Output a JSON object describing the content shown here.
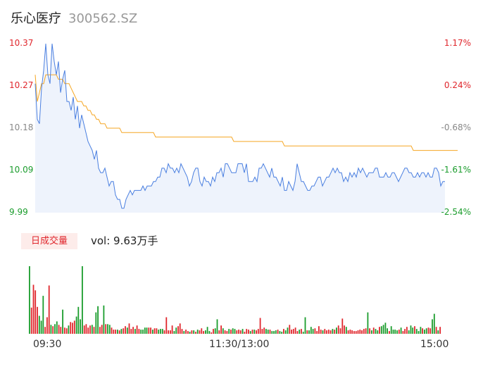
{
  "header": {
    "name": "乐心医疗",
    "code": "300562.SZ"
  },
  "volume_tab": {
    "label": "日成交量",
    "text": "vol: 9.63万手"
  },
  "colors": {
    "price": "#4a7fe0",
    "avg": "#f5a623",
    "up": "#e0262c",
    "down": "#1a9c2c",
    "area": "#eef3fc"
  },
  "chart_data": [
    {
      "type": "line",
      "title": "",
      "xlabel": "",
      "ylabel": "",
      "x_ticks": [
        "09:30",
        "11:30/13:00",
        "15:00"
      ],
      "y_left_ticks": [
        "10.37",
        "10.27",
        "10.18",
        "10.09",
        "9.99"
      ],
      "y_right_ticks": [
        "1.17%",
        "0.24%",
        "-0.68%",
        "-1.61%",
        "-2.54%"
      ],
      "ylim": [
        9.99,
        10.37
      ],
      "series": [
        {
          "values": [
            10.28,
            10.2,
            10.19,
            10.27,
            10.31,
            10.37,
            10.3,
            10.28,
            10.37,
            10.33,
            10.3,
            10.33,
            10.26,
            10.29,
            10.31,
            10.24,
            10.24,
            10.22,
            10.25,
            10.2,
            10.23,
            10.18,
            10.21,
            10.19,
            10.17,
            10.15,
            10.14,
            10.13,
            10.11,
            10.13,
            10.09,
            10.08,
            10.08,
            10.09,
            10.07,
            10.05,
            10.06,
            10.06,
            10.03,
            10.02,
            10.02,
            10.0,
            10.0,
            10.02,
            10.03,
            10.04,
            10.03,
            10.04,
            10.04,
            10.04,
            10.04,
            10.05,
            10.04,
            10.05,
            10.05,
            10.05,
            10.06,
            10.06,
            10.07,
            10.07,
            10.09,
            10.09,
            10.08,
            10.1,
            10.09,
            10.09,
            10.08,
            10.09,
            10.08,
            10.1,
            10.09,
            10.08,
            10.07,
            10.05,
            10.06,
            10.08,
            10.09,
            10.09,
            10.06,
            10.05,
            10.07,
            10.06,
            10.06,
            10.05,
            10.07,
            10.06,
            10.08,
            10.08,
            10.09,
            10.07,
            10.1,
            10.1,
            10.09,
            10.08,
            10.08,
            10.08,
            10.1,
            10.1,
            10.1,
            10.08,
            10.1,
            10.06,
            10.06,
            10.06,
            10.07,
            10.06,
            10.09,
            10.09,
            10.1,
            10.09,
            10.08,
            10.07,
            10.09,
            10.07,
            10.07,
            10.06,
            10.05,
            10.07,
            10.04,
            10.04,
            10.06,
            10.05,
            10.04,
            10.06,
            10.1,
            10.08,
            10.06,
            10.06,
            10.05,
            10.04,
            10.04,
            10.05,
            10.05,
            10.06,
            10.07,
            10.07,
            10.05,
            10.06,
            10.07,
            10.07,
            10.08,
            10.09,
            10.08,
            10.09,
            10.08,
            10.08,
            10.06,
            10.07,
            10.06,
            10.08,
            10.07,
            10.08,
            10.07,
            10.09,
            10.08,
            10.09,
            10.08,
            10.07,
            10.08,
            10.08,
            10.08,
            10.09,
            10.09,
            10.07,
            10.07,
            10.07,
            10.08,
            10.07,
            10.07,
            10.08,
            10.08,
            10.07,
            10.06,
            10.07,
            10.08,
            10.09,
            10.09,
            10.08,
            10.08,
            10.07,
            10.07,
            10.08,
            10.07,
            10.08,
            10.08,
            10.07,
            10.08,
            10.07,
            10.07,
            10.09,
            10.09,
            10.08,
            10.05,
            10.06,
            10.06
          ]
        },
        {
          "values": [
            10.3,
            10.24,
            10.26,
            10.28,
            10.28,
            10.3,
            10.3,
            10.3,
            10.3,
            10.3,
            10.3,
            10.29,
            10.29,
            10.29,
            10.28,
            10.28,
            10.28,
            10.27,
            10.26,
            10.25,
            10.24,
            10.24,
            10.24,
            10.23,
            10.23,
            10.22,
            10.22,
            10.21,
            10.21,
            10.2,
            10.2,
            10.19,
            10.19,
            10.19,
            10.18,
            10.18,
            10.18,
            10.18,
            10.18,
            10.18,
            10.18,
            10.17,
            10.17,
            10.17,
            10.17,
            10.17,
            10.17,
            10.17,
            10.17,
            10.17,
            10.17,
            10.17,
            10.17,
            10.17,
            10.17,
            10.17,
            10.17,
            10.16,
            10.16,
            10.16,
            10.16,
            10.16,
            10.16,
            10.16,
            10.16,
            10.16,
            10.16,
            10.16,
            10.16,
            10.16,
            10.16,
            10.16,
            10.16,
            10.16,
            10.16,
            10.16,
            10.16,
            10.16,
            10.16,
            10.16,
            10.16,
            10.16,
            10.16,
            10.16,
            10.16,
            10.16,
            10.16,
            10.16,
            10.16,
            10.16,
            10.16,
            10.16,
            10.16,
            10.16,
            10.15,
            10.15,
            10.15,
            10.15,
            10.15,
            10.15,
            10.15,
            10.15,
            10.15,
            10.15,
            10.15,
            10.15,
            10.15,
            10.15,
            10.15,
            10.15,
            10.15,
            10.15,
            10.15,
            10.15,
            10.15,
            10.15,
            10.15,
            10.15,
            10.14,
            10.14,
            10.14,
            10.14,
            10.14,
            10.14,
            10.14,
            10.14,
            10.14,
            10.14,
            10.14,
            10.14,
            10.14,
            10.14,
            10.14,
            10.14,
            10.14,
            10.14,
            10.14,
            10.14,
            10.14,
            10.14,
            10.14,
            10.14,
            10.14,
            10.14,
            10.14,
            10.14,
            10.14,
            10.14,
            10.14,
            10.14,
            10.14,
            10.14,
            10.14,
            10.14,
            10.14,
            10.14,
            10.14,
            10.14,
            10.14,
            10.14,
            10.14,
            10.14,
            10.14,
            10.14,
            10.14,
            10.14,
            10.14,
            10.14,
            10.14,
            10.14,
            10.14,
            10.14,
            10.14,
            10.14,
            10.14,
            10.14,
            10.14,
            10.14,
            10.14,
            10.13,
            10.13,
            10.13,
            10.13,
            10.13,
            10.13,
            10.13,
            10.13,
            10.13,
            10.13,
            10.13,
            10.13,
            10.13,
            10.13,
            10.13,
            10.13,
            10.13,
            10.13,
            10.13,
            10.13,
            10.13,
            10.13
          ]
        }
      ]
    },
    {
      "type": "bar",
      "title": "",
      "xlabel": "",
      "ylabel": "",
      "values": [
        98,
        38,
        71,
        63,
        39,
        26,
        19,
        55,
        10,
        24,
        70,
        13,
        11,
        14,
        18,
        13,
        10,
        35,
        9,
        8,
        12,
        17,
        16,
        19,
        25,
        39,
        21,
        98,
        12,
        14,
        9,
        12,
        13,
        10,
        31,
        40,
        10,
        13,
        41,
        14,
        14,
        13,
        9,
        6,
        6,
        6,
        5,
        7,
        8,
        11,
        9,
        15,
        7,
        10,
        7,
        12,
        7,
        6,
        6,
        9,
        9,
        9,
        9,
        6,
        8,
        8,
        6,
        7,
        7,
        5,
        24,
        5,
        5,
        12,
        4,
        9,
        11,
        15,
        7,
        4,
        6,
        4,
        3,
        5,
        5,
        3,
        6,
        5,
        8,
        4,
        5,
        10,
        4,
        2,
        7,
        8,
        21,
        5,
        12,
        8,
        5,
        4,
        7,
        6,
        8,
        7,
        5,
        6,
        5,
        7,
        3,
        7,
        6,
        4,
        6,
        6,
        5,
        7,
        23,
        7,
        9,
        7,
        6,
        6,
        4,
        4,
        5,
        6,
        4,
        3,
        7,
        5,
        9,
        13,
        6,
        7,
        9,
        4,
        6,
        7,
        3,
        24,
        5,
        5,
        10,
        7,
        8,
        4,
        11,
        6,
        5,
        7,
        5,
        6,
        5,
        7,
        6,
        9,
        12,
        8,
        22,
        12,
        10,
        5,
        6,
        5,
        4,
        4,
        5,
        6,
        5,
        7,
        8,
        31,
        8,
        5,
        9,
        7,
        5,
        10,
        11,
        13,
        16,
        8,
        4,
        11,
        6,
        6,
        5,
        6,
        9,
        4,
        7,
        10,
        5,
        12,
        9,
        11,
        7,
        4,
        10,
        8,
        6,
        8,
        9,
        8,
        21,
        29,
        10,
        5,
        10
      ],
      "colors": [
        "down",
        "up",
        "up",
        "up",
        "up",
        "down",
        "down",
        "down",
        "up",
        "up",
        "up",
        "down",
        "up",
        "down",
        "down",
        "up",
        "up",
        "down",
        "up",
        "up",
        "down",
        "up",
        "up",
        "up",
        "down",
        "down",
        "down",
        "down",
        "up",
        "up",
        "up",
        "up",
        "down",
        "up",
        "down",
        "down",
        "up",
        "up",
        "down",
        "up",
        "down",
        "down",
        "up",
        "up",
        "up",
        "down",
        "up",
        "down",
        "up",
        "up",
        "down",
        "up",
        "up",
        "up",
        "down",
        "up",
        "up",
        "down",
        "down",
        "down",
        "down",
        "up",
        "up",
        "down",
        "up",
        "up",
        "down",
        "down",
        "down",
        "up",
        "up",
        "up",
        "up",
        "up",
        "down",
        "down",
        "up",
        "up",
        "up",
        "down",
        "up",
        "up",
        "down",
        "up",
        "down",
        "up",
        "down",
        "up",
        "up",
        "up",
        "down",
        "down",
        "down",
        "up",
        "up",
        "down",
        "down",
        "up",
        "up",
        "down",
        "up",
        "up",
        "down",
        "up",
        "down",
        "down",
        "up",
        "up",
        "up",
        "down",
        "up",
        "up",
        "up",
        "down",
        "up",
        "down",
        "up",
        "up",
        "up",
        "up",
        "up",
        "down",
        "down",
        "up",
        "down",
        "down",
        "down",
        "up",
        "down",
        "down",
        "up",
        "down",
        "down",
        "up",
        "up",
        "up",
        "up",
        "up",
        "down",
        "up",
        "down",
        "down",
        "up",
        "down",
        "down",
        "down",
        "up",
        "up",
        "up",
        "up",
        "down",
        "up",
        "up",
        "up",
        "up",
        "down",
        "up",
        "down",
        "up",
        "up",
        "up",
        "up",
        "down",
        "up",
        "up",
        "up",
        "up",
        "up",
        "up",
        "up",
        "up",
        "up",
        "up",
        "down",
        "up",
        "down",
        "up",
        "down",
        "down",
        "up",
        "down",
        "down",
        "down",
        "down",
        "up",
        "down",
        "down",
        "down",
        "down",
        "up",
        "down",
        "up",
        "up",
        "up",
        "down",
        "down",
        "down",
        "up",
        "down",
        "down",
        "down",
        "up",
        "down",
        "down",
        "up",
        "up",
        "down",
        "down",
        "up",
        "down",
        "up"
      ]
    }
  ]
}
